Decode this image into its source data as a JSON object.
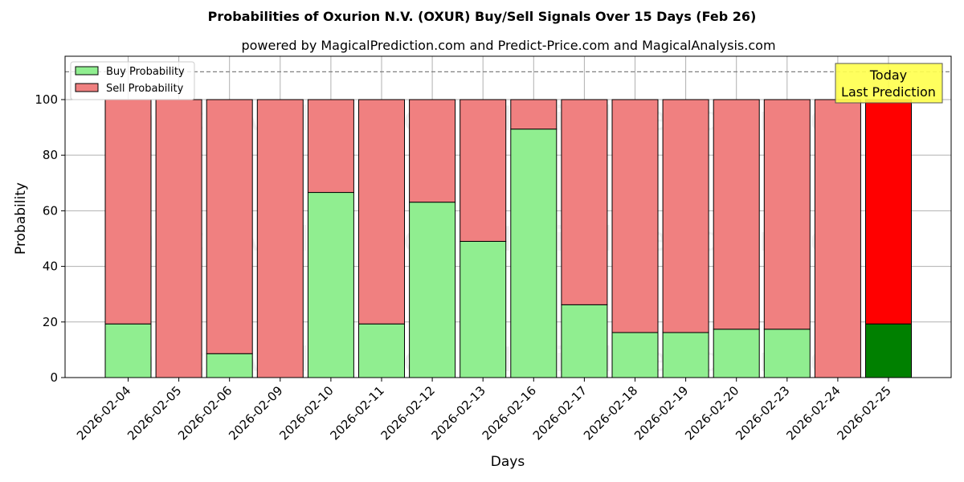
{
  "chart_data": {
    "type": "bar",
    "stacked": true,
    "title": "Probabilities of Oxurion N.V. (OXUR) Buy/Sell Signals Over 15 Days (Feb 26)",
    "subtitle": "powered by MagicalPrediction.com and Predict-Price.com and MagicalAnalysis.com",
    "xlabel": "Days",
    "ylabel": "Probability",
    "ylim": [
      0,
      115.6
    ],
    "yticks": [
      0,
      20,
      40,
      60,
      80,
      100
    ],
    "grid": true,
    "categories": [
      "2026-02-04",
      "2026-02-05",
      "2026-02-06",
      "2026-02-09",
      "2026-02-10",
      "2026-02-11",
      "2026-02-12",
      "2026-02-13",
      "2026-02-16",
      "2026-02-17",
      "2026-02-18",
      "2026-02-19",
      "2026-02-20",
      "2026-02-23",
      "2026-02-24",
      "2026-02-25"
    ],
    "series": [
      {
        "name": "Buy Probability",
        "color": "#90ee90",
        "values": [
          19.3,
          0,
          8.6,
          0,
          66.6,
          19.3,
          63.1,
          49.0,
          89.4,
          26.2,
          16.2,
          16.2,
          17.4,
          17.4,
          0,
          19.3
        ]
      },
      {
        "name": "Sell Probability",
        "color": "#f08080",
        "values": [
          80.7,
          100,
          91.4,
          100,
          33.4,
          80.7,
          36.9,
          51.0,
          10.6,
          73.8,
          83.8,
          83.8,
          82.6,
          82.6,
          100,
          80.7
        ]
      }
    ],
    "highlight": {
      "index": 15,
      "buy_color": "#008000",
      "sell_color": "#ff0000"
    },
    "reference_line": {
      "y": 110,
      "style": "dashed",
      "color": "#808080"
    },
    "annotation": {
      "lines": [
        "Today",
        "Last Prediction"
      ],
      "bg": "#ffff4d"
    },
    "legend": {
      "position": "upper left",
      "entries": [
        "Buy Probability",
        "Sell Probability"
      ]
    },
    "watermarks": [
      "MagicalAnalysis.com",
      "MagicalPrediction.com"
    ]
  }
}
